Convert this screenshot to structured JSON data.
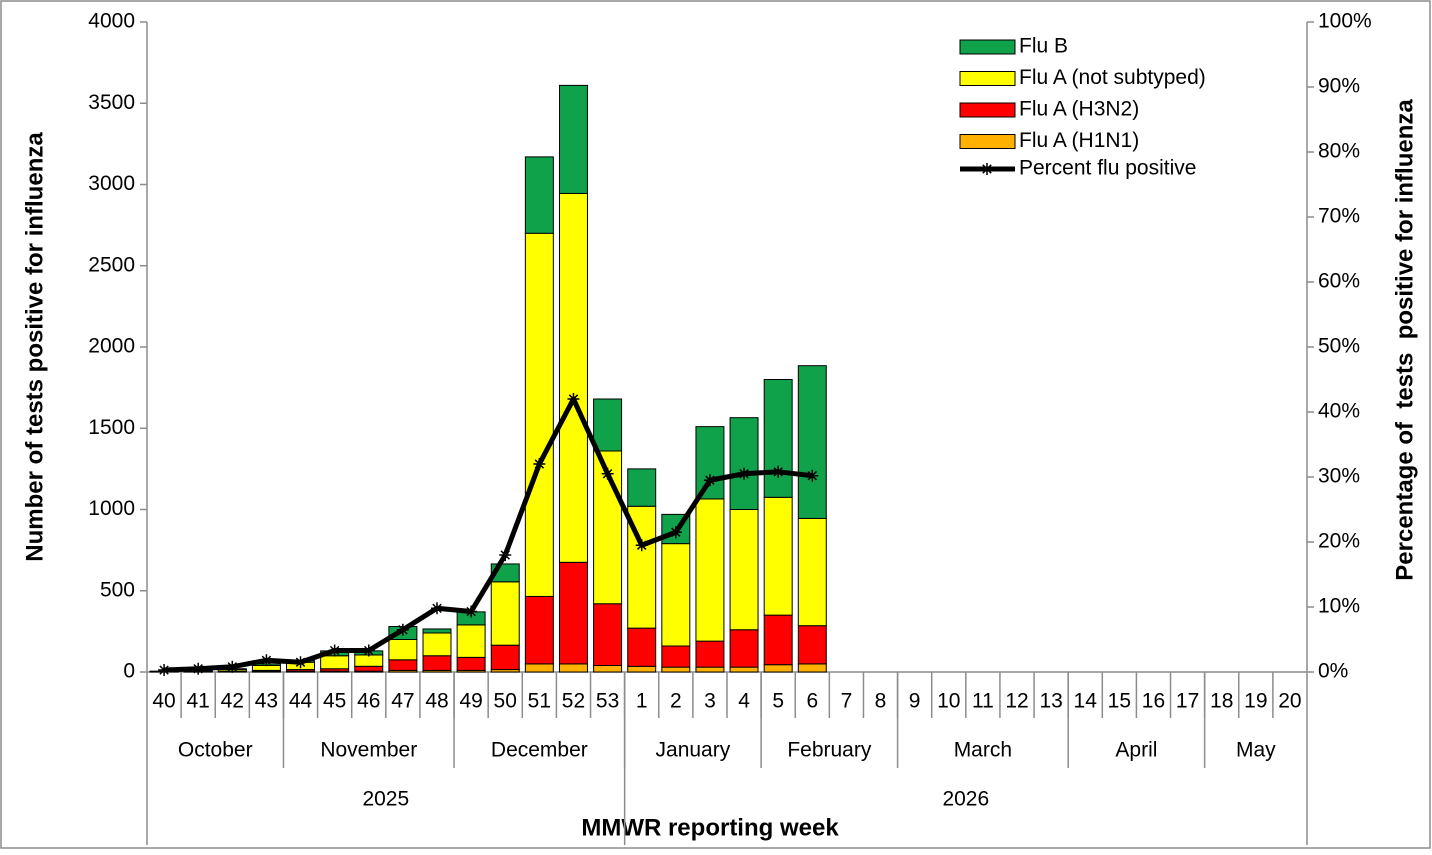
{
  "chart_data": {
    "type": "stacked-bar-line",
    "y_axis_label": "Number of tests positive for influenza",
    "y2_axis_label": "Percentage of  tests  positive for influenza",
    "x_axis_label": "MMWR reporting week",
    "categories": [
      "40",
      "41",
      "42",
      "43",
      "44",
      "45",
      "46",
      "47",
      "48",
      "49",
      "50",
      "51",
      "52",
      "53",
      "1",
      "2",
      "3",
      "4",
      "5",
      "6",
      "7",
      "8",
      "9",
      "10",
      "11",
      "12",
      "13",
      "14",
      "15",
      "16",
      "17",
      "18",
      "19",
      "20"
    ],
    "months": [
      "October",
      "November",
      "December",
      "January",
      "February",
      "March",
      "April",
      "May"
    ],
    "years": [
      "2025",
      "2026"
    ],
    "ylim": [
      0,
      4000
    ],
    "yticks": [
      0,
      500,
      1000,
      1500,
      2000,
      2500,
      3000,
      3500,
      4000
    ],
    "y2lim": [
      0,
      100
    ],
    "y2ticks": [
      {
        "value": 0,
        "label": "0%"
      },
      {
        "value": 10,
        "label": "10%"
      },
      {
        "value": 20,
        "label": "20%"
      },
      {
        "value": 30,
        "label": "30%"
      },
      {
        "value": 40,
        "label": "40%"
      },
      {
        "value": 50,
        "label": "50%"
      },
      {
        "value": 60,
        "label": "60%"
      },
      {
        "value": 70,
        "label": "70%"
      },
      {
        "value": 80,
        "label": "80%"
      },
      {
        "value": 90,
        "label": "90%"
      },
      {
        "value": 100,
        "label": "100%"
      }
    ],
    "grid": false,
    "legend_position": "upper right",
    "series": [
      {
        "name": "Flu A (H1N1)",
        "color": "#ffb000",
        "values": [
          1,
          2,
          3,
          5,
          5,
          5,
          5,
          10,
          10,
          10,
          15,
          50,
          50,
          40,
          35,
          30,
          30,
          30,
          45,
          50,
          null,
          null,
          null,
          null,
          null,
          null,
          null,
          null,
          null,
          null,
          null,
          null,
          null,
          null
        ]
      },
      {
        "name": "Flu A (H3N2)",
        "color": "#ff0000",
        "values": [
          1,
          2,
          3,
          5,
          10,
          15,
          30,
          65,
          90,
          80,
          150,
          415,
          625,
          380,
          235,
          130,
          160,
          230,
          305,
          235,
          null,
          null,
          null,
          null,
          null,
          null,
          null,
          null,
          null,
          null,
          null,
          null,
          null,
          null
        ]
      },
      {
        "name": "Flu A (not subtyped)",
        "color": "#ffff00",
        "values": [
          2,
          4,
          10,
          30,
          45,
          80,
          70,
          125,
          140,
          200,
          390,
          2235,
          2270,
          940,
          750,
          630,
          875,
          740,
          725,
          660,
          null,
          null,
          null,
          null,
          null,
          null,
          null,
          null,
          null,
          null,
          null,
          null,
          null,
          null
        ]
      },
      {
        "name": "Flu B",
        "color": "#0fa24a",
        "values": [
          1,
          2,
          4,
          10,
          10,
          30,
          25,
          80,
          25,
          80,
          110,
          470,
          665,
          320,
          230,
          180,
          445,
          565,
          725,
          940,
          null,
          null,
          null,
          null,
          null,
          null,
          null,
          null,
          null,
          null,
          null,
          null,
          null,
          null
        ]
      },
      {
        "name": "Percent flu positive",
        "color": "#000000",
        "axis": "y2",
        "values": [
          0.3,
          0.5,
          0.8,
          1.8,
          1.5,
          3.3,
          3.3,
          6.5,
          9.8,
          9.3,
          18,
          32,
          42,
          30.5,
          19.5,
          21.5,
          29.5,
          30.5,
          30.8,
          30.2,
          null,
          null,
          null,
          null,
          null,
          null,
          null,
          null,
          null,
          null,
          null,
          null,
          null,
          null
        ]
      }
    ]
  }
}
